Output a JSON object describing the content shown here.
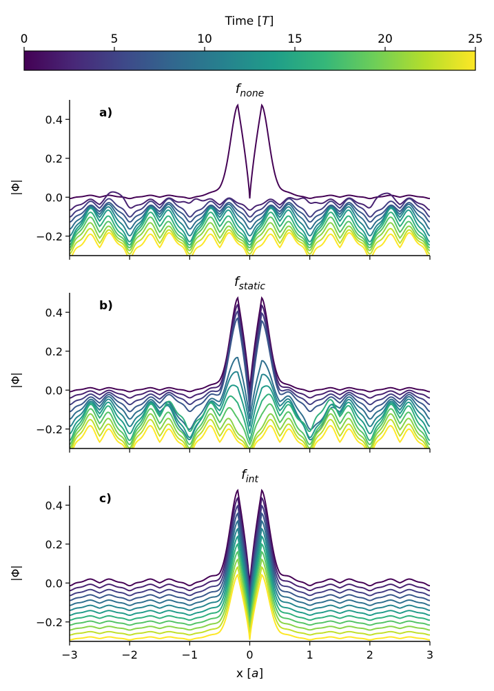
{
  "figure": {
    "colorbar": {
      "label": "Time [T]",
      "label_prefix": "Time [",
      "label_var": "T",
      "label_suffix": "]",
      "range": [
        0,
        25
      ],
      "ticks": [
        "0",
        "5",
        "10",
        "15",
        "20",
        "25"
      ],
      "colormap": [
        "#440154",
        "#482878",
        "#3e4989",
        "#31688e",
        "#26828e",
        "#1f9e89",
        "#35b779",
        "#6ece58",
        "#b5de2b",
        "#fde725"
      ]
    },
    "xlabel": "x [a]",
    "xlabel_prefix": "x [",
    "xlabel_var": "a",
    "xlabel_suffix": "]",
    "x_ticks": [
      "−3",
      "−2",
      "−1",
      "0",
      "1",
      "2",
      "3"
    ],
    "y_ticks": [
      "−0.2",
      "0.0",
      "0.2",
      "0.4"
    ],
    "ylabel": "|Φ|"
  },
  "chart_data": [
    {
      "type": "line",
      "panel_label": "a)",
      "title": "f_none",
      "title_base": "f",
      "title_sub": "none",
      "ylabel": "|Φ|",
      "xlabel": "",
      "xlim": [
        -3,
        3
      ],
      "ylim": [
        -0.3,
        0.5
      ],
      "n_series": 12,
      "curves": {
        "t0_peak": 0.47,
        "t0_peak_x": [
          -0.2,
          0.2
        ],
        "later_baseline_min": -0.29,
        "note": "offset |Phi| snapshots, 12 time steps from T=0 to T=25; peak dissipates after first step"
      }
    },
    {
      "type": "line",
      "panel_label": "b)",
      "title": "f_static",
      "title_base": "f",
      "title_sub": "static",
      "ylabel": "|Φ|",
      "xlabel": "",
      "xlim": [
        -3,
        3
      ],
      "ylim": [
        -0.3,
        0.5
      ],
      "n_series": 12,
      "curves": {
        "t0_peak": 0.47,
        "t0_peak_x": [
          -0.2,
          0.2
        ],
        "later_baseline_min": -0.29,
        "note": "peak persists for several steps then decays into lattice-periodic oscillations"
      }
    },
    {
      "type": "line",
      "panel_label": "c)",
      "title": "f_int",
      "title_base": "f",
      "title_sub": "int",
      "ylabel": "|Φ|",
      "xlabel": "x [a]",
      "xlim": [
        -3,
        3
      ],
      "ylim": [
        -0.3,
        0.5
      ],
      "n_series": 12,
      "curves": {
        "t0_peak": 0.47,
        "t0_peak_x": [
          -0.2,
          0.2
        ],
        "later_baseline_min": -0.29,
        "note": "double-peak shape preserved at all times, each curve offset downward"
      }
    }
  ]
}
